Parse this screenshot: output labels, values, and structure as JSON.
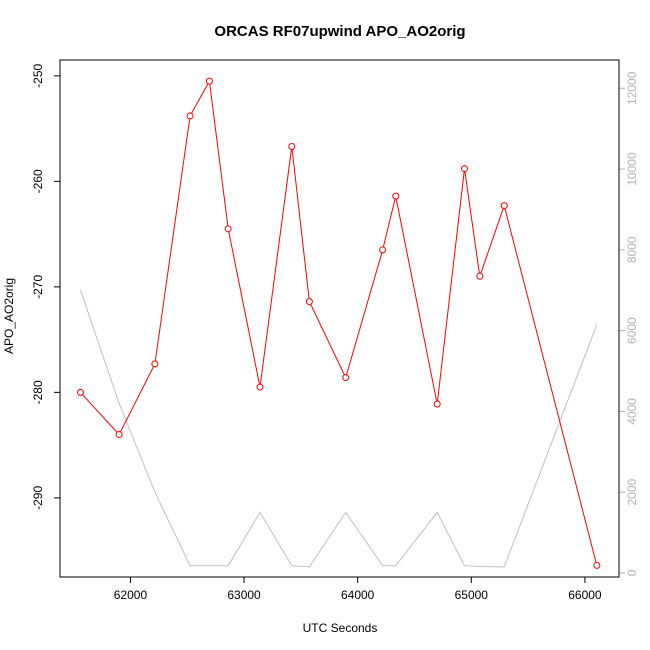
{
  "chart_data": {
    "type": "line",
    "title": "ORCAS RF07upwind APO_AO2orig",
    "xlabel": "UTC Seconds",
    "ylabel": "APO_AO2orig",
    "xlim": [
      61380,
      66300
    ],
    "ylim": [
      -297.5,
      -248.5
    ],
    "y2lim": [
      -100,
      12700
    ],
    "x_ticks": [
      62000,
      63000,
      64000,
      65000,
      66000
    ],
    "x_tick_labels": [
      "62000",
      "63000",
      "64000",
      "65000",
      "66000"
    ],
    "y_ticks": [
      -290,
      -280,
      -270,
      -260,
      -250
    ],
    "y_tick_labels": [
      "-290",
      "-280",
      "-270",
      "-260",
      "-250"
    ],
    "y2_ticks": [
      0,
      2000,
      4000,
      6000,
      8000,
      10000,
      12000
    ],
    "y2_tick_labels": [
      "0",
      "2000",
      "4000",
      "6000",
      "8000",
      "10000",
      "12000"
    ],
    "grid": false,
    "series": [
      {
        "axis": "left",
        "color": "#ff0000",
        "marker": "open-circle",
        "x": [
          61560,
          61900,
          62215,
          62525,
          62695,
          62860,
          63140,
          63420,
          63575,
          63895,
          64220,
          64335,
          64700,
          64940,
          65075,
          65290,
          66105
        ],
        "y": [
          -280.0,
          -284.0,
          -277.3,
          -253.8,
          -250.5,
          -264.5,
          -279.5,
          -256.7,
          -271.4,
          -278.6,
          -266.5,
          -261.4,
          -281.1,
          -258.8,
          -269.0,
          -262.3,
          -296.4
        ]
      },
      {
        "axis": "right",
        "color": "#c0c0c0",
        "marker": "none",
        "x": [
          61560,
          61900,
          62215,
          62525,
          62695,
          62860,
          63140,
          63420,
          63575,
          63895,
          64220,
          64335,
          64700,
          64940,
          65075,
          65290,
          66105
        ],
        "y": [
          7000,
          4200,
          2000,
          180,
          180,
          180,
          1500,
          180,
          150,
          1500,
          180,
          180,
          1500,
          180,
          160,
          150,
          6150
        ]
      }
    ]
  }
}
